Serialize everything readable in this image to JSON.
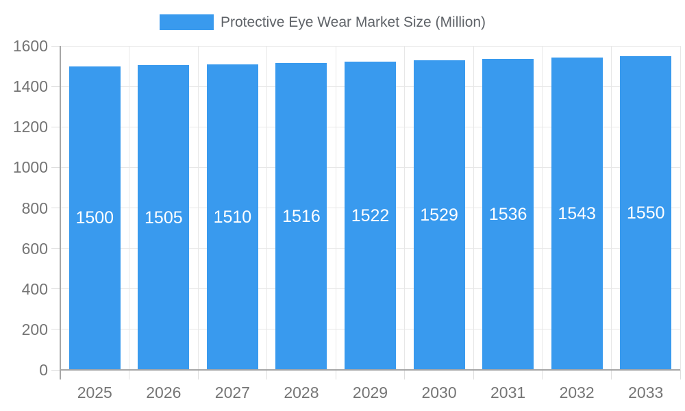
{
  "chart_data": {
    "type": "bar",
    "title": "Protective Eye Wear Market Size (Million)",
    "categories": [
      "2025",
      "2026",
      "2027",
      "2028",
      "2029",
      "2030",
      "2031",
      "2032",
      "2033"
    ],
    "series": [
      {
        "name": "Protective Eye Wear Market Size (Million)",
        "values": [
          1500,
          1505,
          1510,
          1516,
          1522,
          1529,
          1536,
          1543,
          1550
        ]
      }
    ],
    "xlabel": "",
    "ylabel": "",
    "ylim": [
      0,
      1600
    ],
    "yticks": [
      0,
      200,
      400,
      600,
      800,
      1000,
      1200,
      1400,
      1600
    ],
    "grid": true,
    "legend_position": "top-center",
    "value_label_position": "inside-middle",
    "colors": {
      "bar": "#399AEE",
      "bar_value_text": "#FFFFFF",
      "axis_text": "#757575",
      "legend_text": "#5F6368",
      "grid_line": "#E7E7E7",
      "tick_line": "#DEDEDE",
      "axis_line": "#A6A6A6",
      "background": "#FFFFFF"
    }
  }
}
